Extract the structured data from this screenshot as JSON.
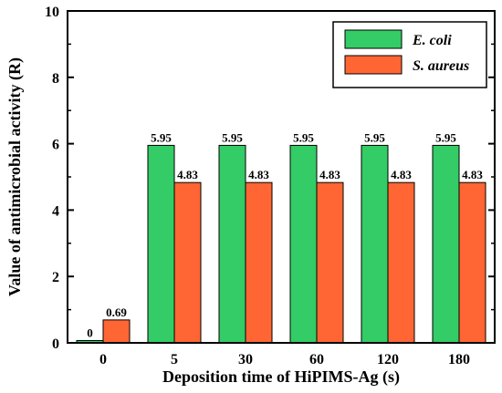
{
  "chart_data": {
    "type": "bar",
    "categories": [
      "0",
      "5",
      "30",
      "60",
      "120",
      "180"
    ],
    "series": [
      {
        "name": "E. coli",
        "color": "#33cc66",
        "values": [
          0,
          5.95,
          5.95,
          5.95,
          5.95,
          5.95
        ],
        "labels": [
          "0",
          "5.95",
          "5.95",
          "5.95",
          "5.95",
          "5.95"
        ]
      },
      {
        "name": "S. aureus",
        "color": "#ff6633",
        "values": [
          0.69,
          4.83,
          4.83,
          4.83,
          4.83,
          4.83
        ],
        "labels": [
          "0.69",
          "4.83",
          "4.83",
          "4.83",
          "4.83",
          "4.83"
        ]
      }
    ],
    "xlabel": "Deposition time of HiPIMS-Ag (s)",
    "ylabel": "Value of antimicrobial activity (R)",
    "ylim": [
      0,
      10
    ],
    "yticks": [
      "0",
      "2",
      "4",
      "6",
      "8",
      "10"
    ],
    "grid": false,
    "legend_position": "top-right"
  }
}
